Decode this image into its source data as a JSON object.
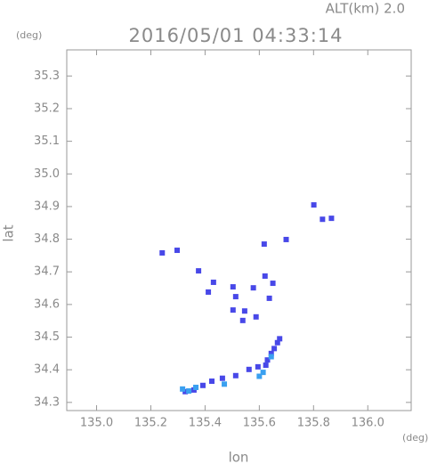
{
  "chart_data": {
    "type": "scatter",
    "title": "2016/05/01 04:33:14",
    "annotation": "ALT(km) 2.0",
    "x_label": "lon",
    "y_label": "lat",
    "x_unit": "(deg)",
    "y_unit": "(deg)",
    "xlim": [
      134.89,
      136.16
    ],
    "ylim": [
      34.275,
      35.38
    ],
    "xticks": [
      {
        "value": 135,
        "label": "135.0"
      },
      135.2,
      135.4,
      135.6,
      135.8,
      {
        "value": 136,
        "label": "136.0"
      }
    ],
    "yticks": [
      34.3,
      34.4,
      34.5,
      34.6,
      34.7,
      34.8,
      34.9,
      {
        "value": 35,
        "label": "35.0"
      },
      35.1,
      35.2,
      35.3
    ],
    "series": [
      {
        "color": "#4848e8",
        "x": [
          135.242,
          135.297,
          135.376,
          135.431,
          135.412,
          135.503,
          135.513,
          135.503,
          135.539,
          135.578,
          135.621,
          135.65,
          135.637,
          135.588,
          135.546,
          135.618,
          135.699,
          135.801,
          135.833,
          135.866,
          135.667,
          135.644,
          135.624,
          135.595,
          135.562,
          135.513,
          135.464,
          135.425,
          135.392,
          135.359,
          135.327,
          135.675,
          135.655,
          135.63
        ],
        "values": [
          34.758,
          34.766,
          34.703,
          34.668,
          34.638,
          34.654,
          34.624,
          34.583,
          34.551,
          34.651,
          34.687,
          34.665,
          34.619,
          34.562,
          34.58,
          34.785,
          34.799,
          34.905,
          34.861,
          34.864,
          34.483,
          34.45,
          34.414,
          34.409,
          34.401,
          34.382,
          34.374,
          34.365,
          34.352,
          34.338,
          34.333,
          34.495,
          34.465,
          34.43
        ]
      },
      {
        "color": "#3aa0f0",
        "x": [
          135.614,
          135.471,
          135.366,
          135.317,
          135.644,
          135.34,
          135.6
        ],
        "values": [
          34.392,
          34.356,
          34.346,
          34.341,
          34.44,
          34.335,
          34.38
        ]
      }
    ]
  }
}
